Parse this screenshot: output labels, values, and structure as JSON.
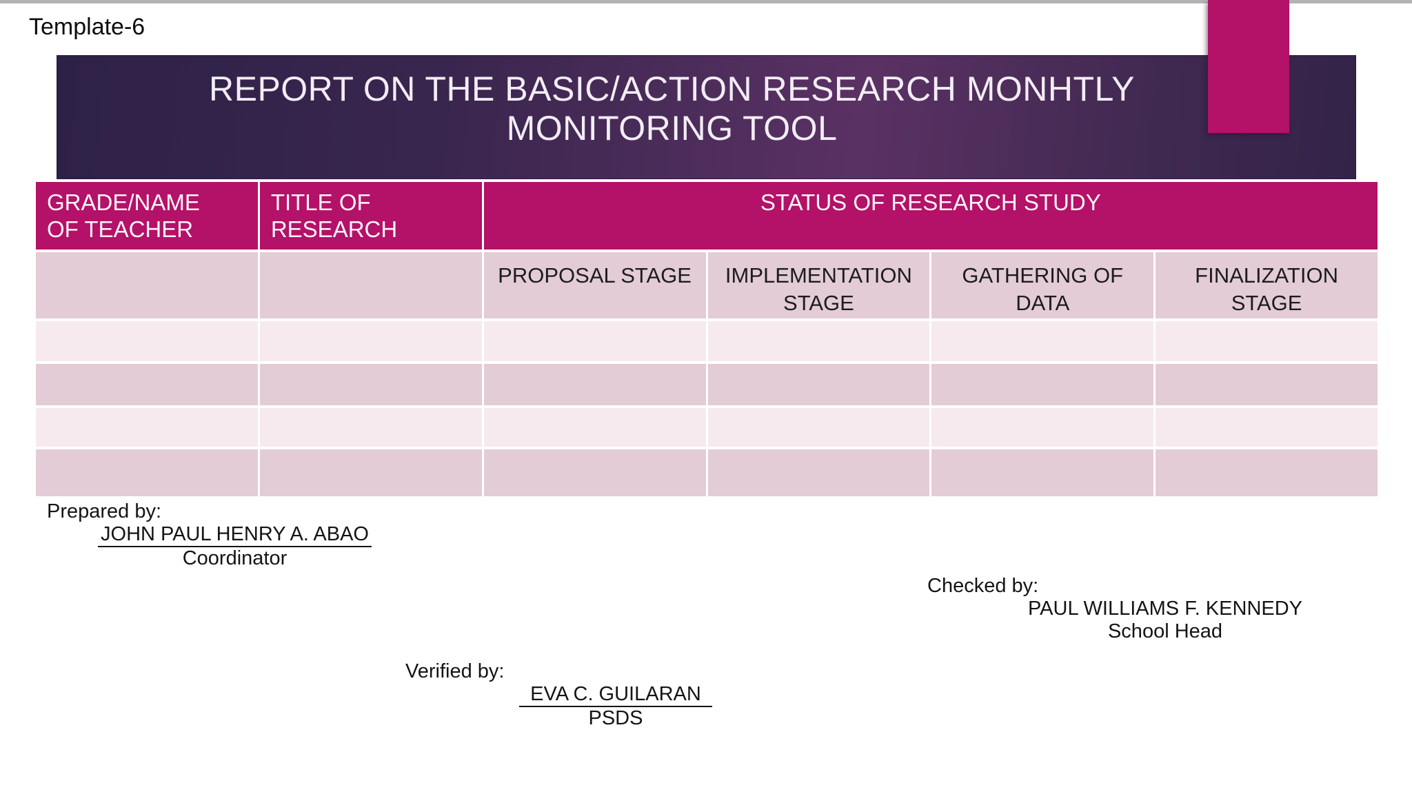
{
  "slide": {
    "template_label": "Template-6",
    "banner": {
      "title": "REPORT ON THE BASIC/ACTION RESEARCH MONHTLY\nMONITORING TOOL"
    },
    "table": {
      "header": {
        "grade_name": "GRADE/NAME\nOF TEACHER",
        "title_research": "TITLE OF\nRESEARCH",
        "status": "STATUS OF RESEARCH STUDY"
      },
      "stage_columns": [
        "PROPOSAL STAGE",
        "IMPLEMENTATION\nSTAGE",
        "GATHERING OF\nDATA",
        "FINALIZATION\nSTAGE"
      ],
      "empty_row_count": 4
    },
    "signatures": {
      "prepared": {
        "label": "Prepared by:",
        "name": "JOHN PAUL HENRY A. ABAO",
        "role": "Coordinator"
      },
      "checked": {
        "label": "Checked by:",
        "name": "PAUL WILLIAMS F. KENNEDY",
        "role": "School Head"
      },
      "verified": {
        "label": "Verified by:",
        "name": "EVA C. GUILARAN",
        "role": "PSDS"
      }
    },
    "colors": {
      "accent_magenta": "#b41168",
      "banner_dark": "#2e2147",
      "banner_mid": "#5a3163",
      "row_dark_pink": "#e3ccd6",
      "row_light_pink": "#f6eaef",
      "title_text": "#f3edf6",
      "body_text": "#1c1c1c"
    }
  }
}
